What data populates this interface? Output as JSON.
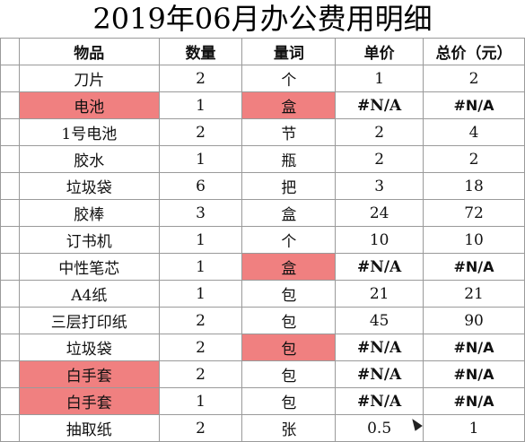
{
  "title": "2019年06月办公费用明细",
  "headers": [
    "物品",
    "数量",
    "量词",
    "单价",
    "总价（元）"
  ],
  "rows": [
    {
      "item": "刀片",
      "qty": "2",
      "unit": "个",
      "price": "1",
      "total": "2",
      "item_hl": false,
      "unit_hl": false
    },
    {
      "item": "电池",
      "qty": "1",
      "unit": "盒",
      "price": "#N/A",
      "total": "#N/A",
      "item_hl": true,
      "unit_hl": true
    },
    {
      "item": "1号电池",
      "qty": "2",
      "unit": "节",
      "price": "2",
      "total": "4",
      "item_hl": false,
      "unit_hl": false
    },
    {
      "item": "胶水",
      "qty": "1",
      "unit": "瓶",
      "price": "2",
      "total": "2",
      "item_hl": false,
      "unit_hl": false
    },
    {
      "item": "垃圾袋",
      "qty": "6",
      "unit": "把",
      "price": "3",
      "total": "18",
      "item_hl": false,
      "unit_hl": false
    },
    {
      "item": "胶棒",
      "qty": "3",
      "unit": "盒",
      "price": "24",
      "total": "72",
      "item_hl": false,
      "unit_hl": false
    },
    {
      "item": "订书机",
      "qty": "1",
      "unit": "个",
      "price": "10",
      "total": "10",
      "item_hl": false,
      "unit_hl": false
    },
    {
      "item": "中性笔芯",
      "qty": "1",
      "unit": "盒",
      "price": "#N/A",
      "total": "#N/A",
      "item_hl": false,
      "unit_hl": true
    },
    {
      "item": "A4纸",
      "qty": "1",
      "unit": "包",
      "price": "21",
      "total": "21",
      "item_hl": false,
      "unit_hl": false
    },
    {
      "item": "三层打印纸",
      "qty": "2",
      "unit": "包",
      "price": "45",
      "total": "90",
      "item_hl": false,
      "unit_hl": false
    },
    {
      "item": "垃圾袋",
      "qty": "2",
      "unit": "包",
      "price": "#N/A",
      "total": "#N/A",
      "item_hl": false,
      "unit_hl": true
    },
    {
      "item": "白手套",
      "qty": "2",
      "unit": "包",
      "price": "#N/A",
      "total": "#N/A",
      "item_hl": true,
      "unit_hl": false
    },
    {
      "item": "白手套",
      "qty": "1",
      "unit": "包",
      "price": "#N/A",
      "total": "#N/A",
      "item_hl": true,
      "unit_hl": false
    },
    {
      "item": "抽取纸",
      "qty": "2",
      "unit": "张",
      "price": "0.5",
      "total": "1",
      "item_hl": false,
      "unit_hl": false
    }
  ],
  "colors": {
    "highlight": "#f08080",
    "error_text": "#c00000",
    "grid": "#9a9a9a"
  }
}
